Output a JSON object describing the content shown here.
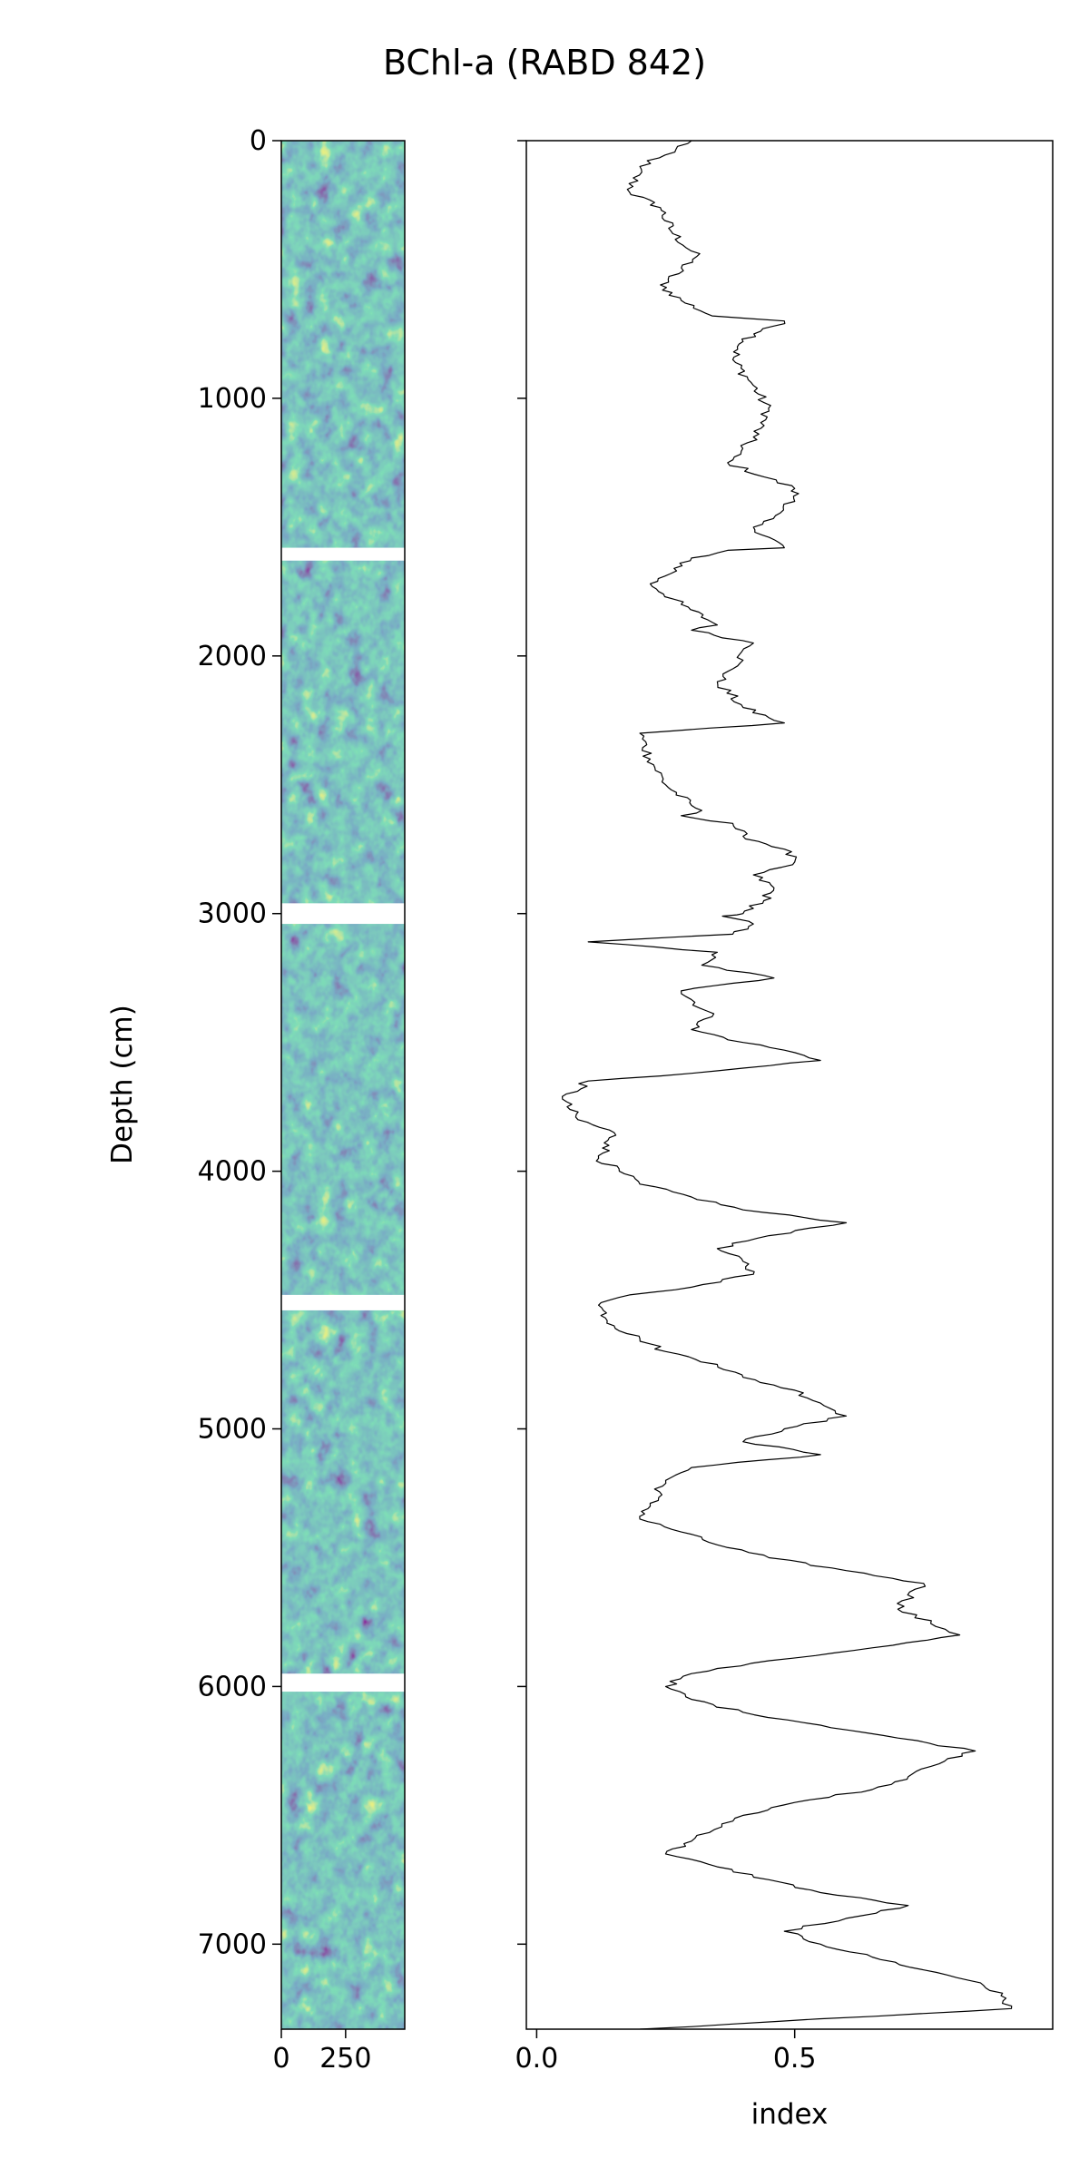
{
  "chart_data": [
    {
      "type": "heatmap",
      "title": "BChl-a (RABD 842)",
      "ylabel": "Depth (cm)",
      "xlabel": "",
      "xlim": [
        0,
        480
      ],
      "ylim": [
        7330,
        0
      ],
      "xticks": [
        0,
        250
      ],
      "yticks": [
        0,
        1000,
        2000,
        3000,
        4000,
        5000,
        6000,
        7000
      ],
      "colormap": [
        "#440154",
        "#31688e",
        "#35b779",
        "#fde725"
      ],
      "colormap_name": "viridis",
      "gaps_depth": [
        [
          1580,
          1630
        ],
        [
          2960,
          3040
        ],
        [
          4480,
          4540
        ],
        [
          5950,
          6020
        ]
      ]
    },
    {
      "type": "line",
      "xlabel": "index",
      "ylabel": "",
      "xlim": [
        -0.02,
        1.0
      ],
      "ylim": [
        7330,
        0
      ],
      "xticks": [
        0.0,
        0.5
      ],
      "line_color": "#000000",
      "series": [
        {
          "x": [
            0.3,
            0.2,
            0.18,
            0.24,
            0.26,
            0.31,
            0.24,
            0.28,
            0.34,
            0.48,
            0.4,
            0.38,
            0.42,
            0.45,
            0.42,
            0.37,
            0.5,
            0.5,
            0.42,
            0.48,
            0.37,
            0.3,
            0.26,
            0.22,
            0.28,
            0.35,
            0.3,
            0.42,
            0.38,
            0.35,
            0.4,
            0.45,
            0.48,
            0.2,
            0.22,
            0.25,
            0.3,
            0.32,
            0.28,
            0.38,
            0.4,
            0.48,
            0.5,
            0.42,
            0.46,
            0.44,
            0.4,
            0.36,
            0.42,
            0.38,
            0.1,
            0.35,
            0.32,
            0.46,
            0.28,
            0.34,
            0.3,
            0.4,
            0.48,
            0.55,
            0.4,
            0.3,
            0.1,
            0.05,
            0.08,
            0.15,
            0.14,
            0.12,
            0.16,
            0.2,
            0.3,
            0.4,
            0.6,
            0.45,
            0.35,
            0.4,
            0.42,
            0.3,
            0.18,
            0.12,
            0.15,
            0.2,
            0.25,
            0.35,
            0.4,
            0.5,
            0.55,
            0.6,
            0.48,
            0.4,
            0.55,
            0.3,
            0.25,
            0.22,
            0.2,
            0.28,
            0.35,
            0.45,
            0.6,
            0.75,
            0.7,
            0.82,
            0.65,
            0.45,
            0.3,
            0.25,
            0.3,
            0.4,
            0.55,
            0.7,
            0.85,
            0.78,
            0.72,
            0.65,
            0.5,
            0.4,
            0.3,
            0.25,
            0.35,
            0.45,
            0.55,
            0.72,
            0.6,
            0.48,
            0.55,
            0.65,
            0.75,
            0.86,
            0.9,
            0.92,
            0.2
          ],
          "y": [
            0,
            100,
            200,
            260,
            350,
            450,
            560,
            620,
            680,
            700,
            780,
            850,
            950,
            1050,
            1150,
            1250,
            1350,
            1400,
            1500,
            1580,
            1590,
            1620,
            1680,
            1720,
            1800,
            1880,
            1900,
            1950,
            2050,
            2100,
            2200,
            2240,
            2260,
            2300,
            2400,
            2500,
            2580,
            2600,
            2620,
            2650,
            2700,
            2750,
            2800,
            2850,
            2900,
            2950,
            3000,
            3010,
            3040,
            3080,
            3110,
            3150,
            3200,
            3250,
            3300,
            3400,
            3450,
            3500,
            3530,
            3570,
            3600,
            3620,
            3650,
            3720,
            3800,
            3850,
            3900,
            3950,
            4000,
            4050,
            4100,
            4150,
            4200,
            4250,
            4300,
            4350,
            4400,
            4450,
            4480,
            4520,
            4600,
            4650,
            4700,
            4750,
            4800,
            4850,
            4900,
            4950,
            5000,
            5050,
            5100,
            5150,
            5200,
            5300,
            5350,
            5400,
            5450,
            5500,
            5550,
            5600,
            5700,
            5800,
            5850,
            5900,
            5950,
            6000,
            6050,
            6100,
            6150,
            6200,
            6250,
            6300,
            6350,
            6400,
            6450,
            6500,
            6600,
            6650,
            6700,
            6750,
            6800,
            6850,
            6900,
            6950,
            7000,
            7050,
            7100,
            7150,
            7200,
            7250,
            7330
          ]
        }
      ]
    }
  ]
}
